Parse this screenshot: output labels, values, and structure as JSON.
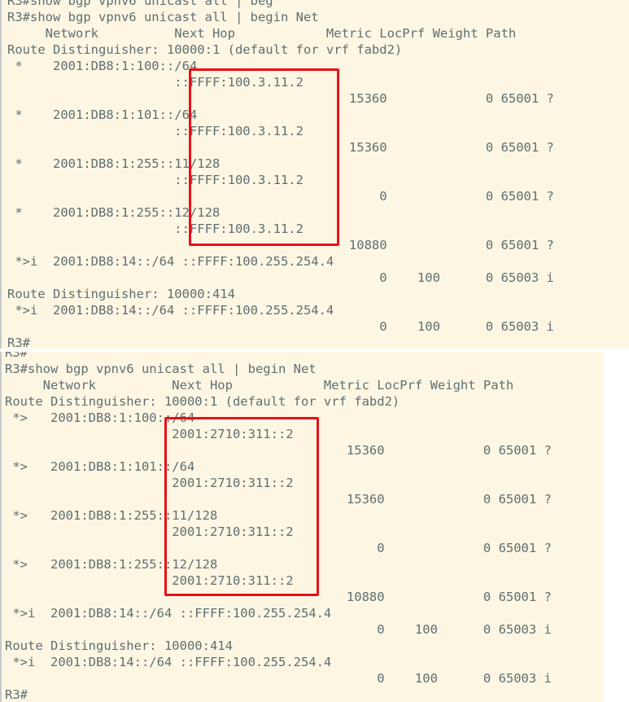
{
  "top_terminal": {
    "lines": [
      "R3#show bgp vpnv6 unicast all | beg",
      "R3#show bgp vpnv6 unicast all | begin Net",
      "     Network          Next Hop            Metric LocPrf Weight Path",
      "Route Distinguisher: 10000:1 (default for vrf fabd2)",
      " *    2001:DB8:1:100::/64",
      "                      ::FFFF:100.3.11.2",
      "                                             15360             0 65001 ?",
      " *    2001:DB8:1:101::/64",
      "                      ::FFFF:100.3.11.2",
      "                                             15360             0 65001 ?",
      " *    2001:DB8:1:255::11/128",
      "                      ::FFFF:100.3.11.2",
      "                                                 0             0 65001 ?",
      " *    2001:DB8:1:255::12/128",
      "                      ::FFFF:100.3.11.2",
      "                                             10880             0 65001 ?",
      " *>i  2001:DB8:14::/64 ::FFFF:100.255.254.4",
      "                                                 0    100      0 65003 i",
      "Route Distinguisher: 10000:414",
      " *>i  2001:DB8:14::/64 ::FFFF:100.255.254.4",
      "                                                 0    100      0 65003 i",
      "R3#"
    ]
  },
  "bottom_terminal": {
    "lines": [
      "R3#",
      "R3#show bgp vpnv6 unicast all | begin Net",
      "     Network          Next Hop            Metric LocPrf Weight Path",
      "Route Distinguisher: 10000:1 (default for vrf fabd2)",
      " *>   2001:DB8:1:100::/64",
      "                      2001:2710:311::2",
      "                                             15360             0 65001 ?",
      " *>   2001:DB8:1:101::/64",
      "                      2001:2710:311::2",
      "                                             15360             0 65001 ?",
      " *>   2001:DB8:1:255::11/128",
      "                      2001:2710:311::2",
      "                                                 0             0 65001 ?",
      " *>   2001:DB8:1:255::12/128",
      "                      2001:2710:311::2",
      "                                             10880             0 65001 ?",
      " *>i  2001:DB8:14::/64 ::FFFF:100.255.254.4",
      "                                                 0    100      0 65003 i",
      "Route Distinguisher: 10000:414",
      " *>i  2001:DB8:14::/64 ::FFFF:100.255.254.4",
      "                                                 0    100      0 65003 i",
      "R3#"
    ]
  },
  "colors": {
    "background": "#fdf6e3",
    "text": "#5f6f72",
    "highlight": "#e8101a"
  }
}
